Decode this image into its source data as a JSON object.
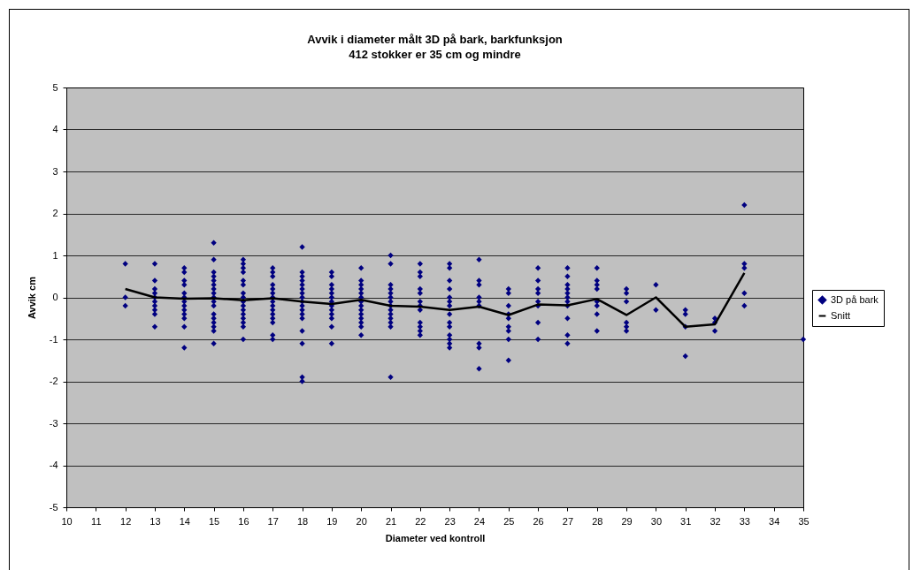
{
  "chart_data": {
    "type": "scatter",
    "title": "Avvik i diameter målt 3D på bark, barkfunksjon",
    "subtitle": "412 stokker er 35 cm og mindre",
    "xlabel": "Diameter ved kontroll",
    "ylabel": "Avvik cm",
    "xlim": [
      10,
      35
    ],
    "xticks": [
      10,
      11,
      12,
      13,
      14,
      15,
      16,
      17,
      18,
      19,
      20,
      21,
      22,
      23,
      24,
      25,
      26,
      27,
      28,
      29,
      30,
      31,
      32,
      33,
      34,
      35
    ],
    "ylim": [
      -5,
      5
    ],
    "yticks": [
      -5,
      -4,
      -3,
      -2,
      -1,
      0,
      1,
      2,
      3,
      4,
      5
    ],
    "grid": "y",
    "legend": "right",
    "series": [
      {
        "name": "3D på bark",
        "type": "scatter",
        "marker": "diamond",
        "color": "#000080",
        "x": [
          12,
          12,
          12,
          13,
          13,
          13,
          13,
          13,
          13,
          13,
          13,
          13,
          13,
          14,
          14,
          14,
          14,
          14,
          14,
          14,
          14,
          14,
          14,
          14,
          14,
          14,
          15,
          15,
          15,
          15,
          15,
          15,
          15,
          15,
          15,
          15,
          15,
          15,
          15,
          15,
          15,
          15,
          15,
          16,
          16,
          16,
          16,
          16,
          16,
          16,
          16,
          16,
          16,
          16,
          16,
          16,
          16,
          16,
          16,
          17,
          17,
          17,
          17,
          17,
          17,
          17,
          17,
          17,
          17,
          17,
          17,
          17,
          17,
          17,
          18,
          18,
          18,
          18,
          18,
          18,
          18,
          18,
          18,
          18,
          18,
          18,
          18,
          18,
          18,
          18,
          18,
          19,
          19,
          19,
          19,
          19,
          19,
          19,
          19,
          19,
          19,
          19,
          19,
          19,
          20,
          20,
          20,
          20,
          20,
          20,
          20,
          20,
          20,
          20,
          20,
          20,
          20,
          20,
          21,
          21,
          21,
          21,
          21,
          21,
          21,
          21,
          21,
          21,
          21,
          21,
          21,
          21,
          22,
          22,
          22,
          22,
          22,
          22,
          22,
          22,
          22,
          22,
          22,
          22,
          23,
          23,
          23,
          23,
          23,
          23,
          23,
          23,
          23,
          23,
          23,
          23,
          23,
          23,
          24,
          24,
          24,
          24,
          24,
          24,
          24,
          24,
          24,
          25,
          25,
          25,
          25,
          25,
          25,
          25,
          25,
          25,
          26,
          26,
          26,
          26,
          26,
          26,
          26,
          26,
          27,
          27,
          27,
          27,
          27,
          27,
          27,
          27,
          27,
          27,
          27,
          28,
          28,
          28,
          28,
          28,
          28,
          28,
          28,
          29,
          29,
          29,
          29,
          29,
          29,
          30,
          30,
          31,
          31,
          31,
          31,
          32,
          32,
          32,
          33,
          33,
          33,
          33,
          33,
          35
        ],
        "values": [
          0.8,
          0,
          -0.2,
          0.8,
          0.4,
          0.2,
          0.1,
          0,
          -0.1,
          -0.2,
          -0.3,
          -0.4,
          -0.7,
          0.7,
          0.6,
          0.4,
          0.3,
          0.1,
          0,
          -0.1,
          -0.2,
          -0.3,
          -0.4,
          -0.5,
          -0.7,
          -1.2,
          1.3,
          0.9,
          0.6,
          0.5,
          0.4,
          0.3,
          0.2,
          0.1,
          0,
          -0.1,
          -0.2,
          -0.4,
          -0.5,
          -0.6,
          -0.7,
          -0.8,
          -1.1,
          0.9,
          0.8,
          0.7,
          0.6,
          0.4,
          0.3,
          0.1,
          0,
          -0.1,
          -0.2,
          -0.3,
          -0.4,
          -0.5,
          -0.6,
          -0.7,
          -1.0,
          0.7,
          0.6,
          0.5,
          0.3,
          0.2,
          0.1,
          0,
          -0.1,
          -0.2,
          -0.3,
          -0.4,
          -0.5,
          -0.6,
          -0.9,
          -1.0,
          1.2,
          0.6,
          0.5,
          0.4,
          0.3,
          0.2,
          0.1,
          0,
          -0.1,
          -0.2,
          -0.3,
          -0.4,
          -0.5,
          -0.8,
          -1.1,
          -1.9,
          -2.0,
          0.6,
          0.5,
          0.3,
          0.2,
          0.1,
          0,
          -0.1,
          -0.2,
          -0.3,
          -0.4,
          -0.5,
          -0.7,
          -1.1,
          0.7,
          0.4,
          0.3,
          0.2,
          0.1,
          0,
          -0.1,
          -0.2,
          -0.3,
          -0.4,
          -0.5,
          -0.6,
          -0.7,
          -0.9,
          1.0,
          0.8,
          0.3,
          0.2,
          0.1,
          0,
          -0.1,
          -0.2,
          -0.3,
          -0.4,
          -0.5,
          -0.6,
          -0.7,
          -1.9,
          0.8,
          0.6,
          0.5,
          0.2,
          0.1,
          -0.1,
          -0.2,
          -0.3,
          -0.6,
          -0.7,
          -0.8,
          -0.9,
          0.8,
          0.7,
          0.4,
          0.2,
          0,
          -0.1,
          -0.2,
          -0.4,
          -0.6,
          -0.7,
          -0.9,
          -1.0,
          -1.1,
          -1.2,
          0.9,
          0.4,
          0.3,
          0,
          -0.1,
          -0.2,
          -1.1,
          -1.2,
          -1.7,
          0.2,
          0.1,
          -0.2,
          -0.4,
          -0.5,
          -0.7,
          -0.8,
          -1.0,
          -1.5,
          0.7,
          0.4,
          0.2,
          0.1,
          -0.1,
          -0.2,
          -0.6,
          -1.0,
          0.7,
          0.5,
          0.3,
          0.2,
          0.1,
          0,
          -0.1,
          -0.2,
          -0.5,
          -0.9,
          -1.1,
          0.7,
          0.4,
          0.3,
          0.2,
          -0.1,
          -0.2,
          -0.4,
          -0.8,
          0.2,
          0.1,
          -0.1,
          -0.6,
          -0.7,
          -0.8,
          0.3,
          -0.3,
          -0.3,
          -0.4,
          -0.7,
          -1.4,
          -0.5,
          -0.6,
          -0.8,
          2.2,
          0.8,
          0.7,
          0.1,
          -0.2,
          -1.0
        ]
      },
      {
        "name": "Snitt",
        "type": "line",
        "color": "#000000",
        "x": [
          12,
          13,
          14,
          15,
          16,
          17,
          18,
          19,
          20,
          21,
          22,
          23,
          24,
          25,
          26,
          27,
          28,
          29,
          30,
          31,
          32,
          33
        ],
        "values": [
          0.2,
          0,
          -0.03,
          -0.02,
          -0.07,
          -0.02,
          -0.1,
          -0.16,
          -0.06,
          -0.2,
          -0.22,
          -0.3,
          -0.22,
          -0.42,
          -0.17,
          -0.19,
          -0.04,
          -0.42,
          0,
          -0.7,
          -0.64,
          0.58
        ]
      }
    ]
  }
}
